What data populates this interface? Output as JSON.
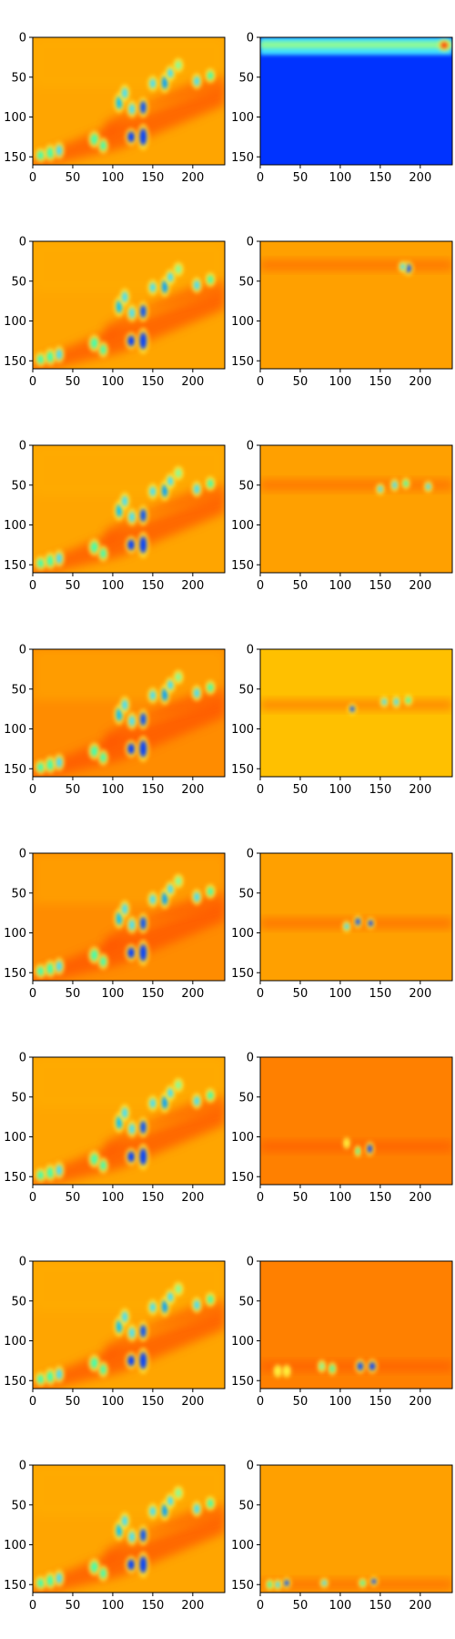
{
  "chart_data": {
    "type": "heatmap",
    "layout": {
      "rows": 8,
      "cols": 2
    },
    "colormap": "jet",
    "grid": false,
    "x_ticks": [
      0,
      50,
      100,
      150,
      200
    ],
    "y_ticks": [
      0,
      50,
      100,
      150
    ],
    "xlim": [
      0,
      240
    ],
    "ylim": [
      160,
      0
    ],
    "left_column_background": "#ffa500",
    "panels": [
      {
        "row": 0,
        "col": 0,
        "band_y": 0,
        "background": "#ffa500"
      },
      {
        "row": 0,
        "col": 1,
        "band_y": 12,
        "background": "#0033ff"
      },
      {
        "row": 1,
        "col": 0,
        "band_y": 0,
        "background": "#ffa500"
      },
      {
        "row": 1,
        "col": 1,
        "band_y": 30,
        "background": "#ffa000"
      },
      {
        "row": 2,
        "col": 0,
        "band_y": 0,
        "background": "#ffa500"
      },
      {
        "row": 2,
        "col": 1,
        "band_y": 50,
        "background": "#ffa000"
      },
      {
        "row": 3,
        "col": 0,
        "band_y": 0,
        "background": "#ff8c00"
      },
      {
        "row": 3,
        "col": 1,
        "band_y": 70,
        "background": "#ffc000"
      },
      {
        "row": 4,
        "col": 0,
        "band_y": 0,
        "background": "#ff8c00"
      },
      {
        "row": 4,
        "col": 1,
        "band_y": 88,
        "background": "#ffa000"
      },
      {
        "row": 5,
        "col": 0,
        "band_y": 0,
        "background": "#ffa500"
      },
      {
        "row": 5,
        "col": 1,
        "band_y": 112,
        "background": "#ff8000"
      },
      {
        "row": 6,
        "col": 0,
        "band_y": 0,
        "background": "#ffa500"
      },
      {
        "row": 6,
        "col": 1,
        "band_y": 132,
        "background": "#ff8000"
      },
      {
        "row": 7,
        "col": 0,
        "band_y": 0,
        "background": "#ffa500"
      },
      {
        "row": 7,
        "col": 1,
        "band_y": 150,
        "background": "#ffa000"
      }
    ],
    "blobs": [
      {
        "x": 10,
        "y": 148,
        "w": 6,
        "h": 8,
        "c": "#40ffb0"
      },
      {
        "x": 22,
        "y": 145,
        "w": 6,
        "h": 10,
        "c": "#40ffb0"
      },
      {
        "x": 33,
        "y": 142,
        "w": 5,
        "h": 10,
        "c": "#40e0ff"
      },
      {
        "x": 77,
        "y": 128,
        "w": 6,
        "h": 10,
        "c": "#40ffb0"
      },
      {
        "x": 88,
        "y": 136,
        "w": 5,
        "h": 9,
        "c": "#40ffb0"
      },
      {
        "x": 108,
        "y": 82,
        "w": 5,
        "h": 12,
        "c": "#00c0ff"
      },
      {
        "x": 115,
        "y": 70,
        "w": 5,
        "h": 10,
        "c": "#40e0ff"
      },
      {
        "x": 123,
        "y": 125,
        "w": 6,
        "h": 10,
        "c": "#0040ff"
      },
      {
        "x": 124,
        "y": 90,
        "w": 5,
        "h": 10,
        "c": "#40e0ff"
      },
      {
        "x": 138,
        "y": 125,
        "w": 6,
        "h": 16,
        "c": "#0040ff"
      },
      {
        "x": 138,
        "y": 88,
        "w": 5,
        "h": 12,
        "c": "#0050ff"
      },
      {
        "x": 150,
        "y": 58,
        "w": 5,
        "h": 9,
        "c": "#40e0ff"
      },
      {
        "x": 165,
        "y": 57,
        "w": 5,
        "h": 12,
        "c": "#00a0ff"
      },
      {
        "x": 172,
        "y": 45,
        "w": 5,
        "h": 9,
        "c": "#40e0ff"
      },
      {
        "x": 182,
        "y": 35,
        "w": 5,
        "h": 8,
        "c": "#80ffa0"
      },
      {
        "x": 205,
        "y": 55,
        "w": 5,
        "h": 9,
        "c": "#40e0ff"
      },
      {
        "x": 222,
        "y": 48,
        "w": 5,
        "h": 8,
        "c": "#40ffb0"
      }
    ],
    "right_blobs": [
      [
        {
          "x": 230,
          "y": 10,
          "w": 6,
          "h": 6,
          "c": "#ff4000"
        }
      ],
      [
        {
          "x": 185,
          "y": 34,
          "w": 5,
          "h": 8,
          "c": "#0050ff"
        },
        {
          "x": 178,
          "y": 32,
          "w": 4,
          "h": 6,
          "c": "#40e0ff"
        }
      ],
      [
        {
          "x": 150,
          "y": 55,
          "w": 4,
          "h": 6,
          "c": "#40e0ff"
        },
        {
          "x": 168,
          "y": 50,
          "w": 4,
          "h": 7,
          "c": "#40e0ff"
        },
        {
          "x": 182,
          "y": 48,
          "w": 4,
          "h": 6,
          "c": "#40ffb0"
        },
        {
          "x": 210,
          "y": 52,
          "w": 4,
          "h": 6,
          "c": "#40e0ff"
        }
      ],
      [
        {
          "x": 115,
          "y": 75,
          "w": 4,
          "h": 6,
          "c": "#0050ff"
        },
        {
          "x": 155,
          "y": 66,
          "w": 4,
          "h": 6,
          "c": "#40e0ff"
        },
        {
          "x": 170,
          "y": 66,
          "w": 4,
          "h": 7,
          "c": "#40e0ff"
        },
        {
          "x": 185,
          "y": 64,
          "w": 4,
          "h": 6,
          "c": "#40ffb0"
        }
      ],
      [
        {
          "x": 108,
          "y": 92,
          "w": 4,
          "h": 6,
          "c": "#40e0ff"
        },
        {
          "x": 122,
          "y": 86,
          "w": 4,
          "h": 7,
          "c": "#0050ff"
        },
        {
          "x": 138,
          "y": 88,
          "w": 4,
          "h": 6,
          "c": "#0040ff"
        }
      ],
      [
        {
          "x": 108,
          "y": 108,
          "w": 3,
          "h": 6,
          "c": "#ffff40"
        },
        {
          "x": 122,
          "y": 118,
          "w": 3,
          "h": 6,
          "c": "#40ffb0"
        },
        {
          "x": 137,
          "y": 115,
          "w": 4,
          "h": 8,
          "c": "#0040ff"
        }
      ],
      [
        {
          "x": 22,
          "y": 138,
          "w": 4,
          "h": 7,
          "c": "#ffff40"
        },
        {
          "x": 33,
          "y": 138,
          "w": 4,
          "h": 7,
          "c": "#ffff40"
        },
        {
          "x": 77,
          "y": 132,
          "w": 4,
          "h": 7,
          "c": "#80ffa0"
        },
        {
          "x": 90,
          "y": 135,
          "w": 4,
          "h": 7,
          "c": "#40ffb0"
        },
        {
          "x": 125,
          "y": 132,
          "w": 5,
          "h": 8,
          "c": "#0050ff"
        },
        {
          "x": 140,
          "y": 132,
          "w": 5,
          "h": 8,
          "c": "#0040ff"
        }
      ],
      [
        {
          "x": 12,
          "y": 150,
          "w": 4,
          "h": 6,
          "c": "#40ffb0"
        },
        {
          "x": 22,
          "y": 150,
          "w": 4,
          "h": 6,
          "c": "#40e0ff"
        },
        {
          "x": 33,
          "y": 148,
          "w": 4,
          "h": 6,
          "c": "#0050ff"
        },
        {
          "x": 80,
          "y": 148,
          "w": 4,
          "h": 5,
          "c": "#40e0ff"
        },
        {
          "x": 128,
          "y": 148,
          "w": 4,
          "h": 5,
          "c": "#40ffb0"
        },
        {
          "x": 142,
          "y": 146,
          "w": 4,
          "h": 5,
          "c": "#0040ff"
        }
      ]
    ]
  }
}
